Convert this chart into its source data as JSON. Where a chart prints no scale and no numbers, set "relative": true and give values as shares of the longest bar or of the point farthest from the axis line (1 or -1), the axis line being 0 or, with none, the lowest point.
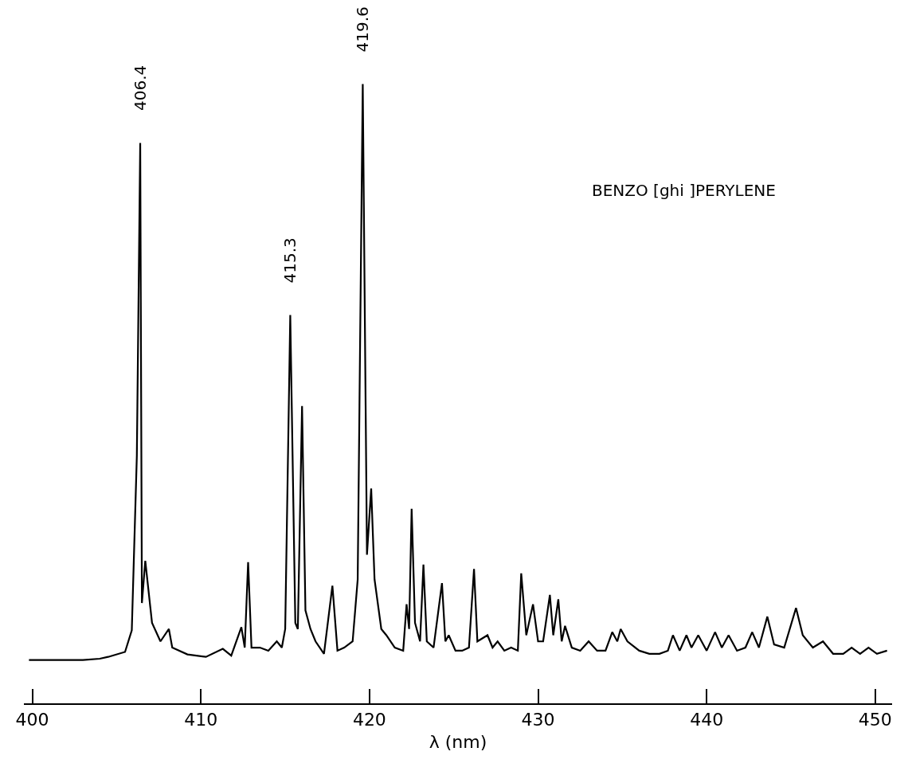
{
  "chart_data": {
    "type": "line",
    "relative": true,
    "xlabel": "λ (nm)",
    "xlim": [
      399.5,
      451
    ],
    "xticks": [
      400,
      410,
      420,
      430,
      440,
      450
    ],
    "grid": false,
    "marker": "none",
    "line_style": "solid",
    "annotations": [
      {
        "text": "406.4",
        "x": 406.4,
        "y": 0.905
      },
      {
        "text": "415.3",
        "x": 415.3,
        "y": 0.627
      },
      {
        "text": "419.6",
        "x": 419.6,
        "y": 1.0
      },
      "BENZO [ghi ]PERYLENE"
    ],
    "series": [
      {
        "color": "#000000",
        "x": [
          399.8,
          401,
          402,
          403,
          404,
          404.5,
          405.5,
          405.9,
          406.2,
          406.4,
          406.5,
          406.7,
          407.1,
          407.6,
          408.1,
          408.3,
          409.2,
          410.3,
          411.3,
          411.8,
          412.4,
          412.6,
          412.8,
          413.0,
          413.5,
          414.0,
          414.5,
          414.8,
          415.0,
          415.3,
          415.6,
          415.75,
          416.0,
          416.2,
          416.5,
          416.8,
          417.3,
          417.8,
          418.1,
          418.5,
          419.0,
          419.3,
          419.6,
          419.85,
          420.1,
          420.3,
          420.7,
          421.0,
          421.5,
          422.0,
          422.2,
          422.35,
          422.5,
          422.7,
          423.0,
          423.2,
          423.4,
          423.8,
          424.3,
          424.5,
          424.7,
          425.1,
          425.5,
          425.9,
          426.2,
          426.4,
          427.0,
          427.3,
          427.6,
          428.0,
          428.4,
          428.8,
          429.0,
          429.3,
          429.7,
          430.0,
          430.3,
          430.7,
          430.9,
          431.2,
          431.4,
          431.6,
          432.0,
          432.5,
          433.0,
          433.5,
          434.0,
          434.4,
          434.7,
          434.9,
          435.3,
          436.0,
          436.6,
          437.2,
          437.7,
          438.0,
          438.4,
          438.8,
          439.1,
          439.5,
          440.0,
          440.5,
          440.9,
          441.3,
          441.8,
          442.3,
          442.7,
          443.1,
          443.6,
          444.0,
          444.6,
          445.3,
          445.7,
          446.3,
          446.9,
          447.5,
          448.1,
          448.6,
          449.1,
          449.6,
          450.1,
          450.7
        ],
        "values": [
          0.07,
          0.07,
          0.07,
          0.07,
          0.072,
          0.075,
          0.083,
          0.118,
          0.4,
          0.905,
          0.162,
          0.23,
          0.13,
          0.1,
          0.12,
          0.09,
          0.079,
          0.075,
          0.088,
          0.077,
          0.123,
          0.09,
          0.228,
          0.09,
          0.09,
          0.085,
          0.1,
          0.09,
          0.12,
          0.627,
          0.13,
          0.12,
          0.48,
          0.15,
          0.12,
          0.1,
          0.08,
          0.19,
          0.085,
          0.09,
          0.1,
          0.2,
          1.0,
          0.24,
          0.347,
          0.2,
          0.12,
          0.11,
          0.09,
          0.085,
          0.16,
          0.12,
          0.314,
          0.13,
          0.1,
          0.224,
          0.1,
          0.09,
          0.194,
          0.1,
          0.11,
          0.085,
          0.085,
          0.09,
          0.217,
          0.1,
          0.11,
          0.09,
          0.1,
          0.085,
          0.09,
          0.085,
          0.21,
          0.11,
          0.16,
          0.1,
          0.1,
          0.175,
          0.11,
          0.168,
          0.1,
          0.125,
          0.09,
          0.085,
          0.1,
          0.085,
          0.085,
          0.115,
          0.1,
          0.12,
          0.1,
          0.085,
          0.08,
          0.08,
          0.085,
          0.11,
          0.085,
          0.11,
          0.09,
          0.11,
          0.085,
          0.115,
          0.09,
          0.11,
          0.085,
          0.09,
          0.115,
          0.09,
          0.14,
          0.095,
          0.09,
          0.154,
          0.11,
          0.09,
          0.1,
          0.08,
          0.08,
          0.09,
          0.08,
          0.09,
          0.08,
          0.085
        ]
      }
    ]
  }
}
